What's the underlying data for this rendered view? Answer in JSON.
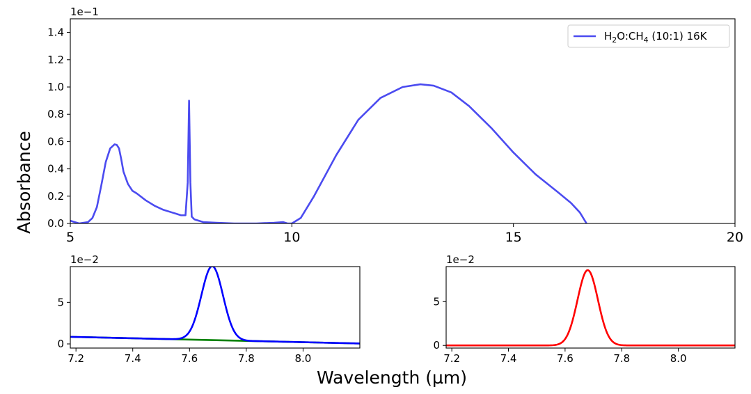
{
  "figure": {
    "ylabel": "Absorbance",
    "xlabel": "Wavelength (µm)"
  },
  "chart_data": [
    {
      "id": "main",
      "type": "line",
      "multiplier_label": "1e−1",
      "xlim": [
        5,
        20
      ],
      "ylim": [
        0,
        1.5
      ],
      "xticks": [
        5,
        10,
        15,
        20
      ],
      "xtick_labels": [
        "5",
        "10",
        "15",
        "20"
      ],
      "yticks": [
        0,
        0.2,
        0.4,
        0.6,
        0.8,
        1.0,
        1.2,
        1.4
      ],
      "ytick_labels": [
        "0.0",
        "0.2",
        "0.4",
        "0.6",
        "0.8",
        "1.0",
        "1.2",
        "1.4"
      ],
      "legend": {
        "placement": "top-right",
        "entries": [
          {
            "label_main": "H",
            "sub1": "2",
            "label_mid": "O:CH",
            "sub2": "4",
            "label_end": " (10:1) 16K",
            "color": "#4b4bf0"
          }
        ]
      },
      "series": [
        {
          "name": "H2O:CH4 (10:1) 16K",
          "color": "#4b4bf0",
          "x": [
            5.0,
            5.2,
            5.4,
            5.5,
            5.6,
            5.7,
            5.8,
            5.9,
            6.0,
            6.05,
            6.1,
            6.15,
            6.2,
            6.3,
            6.4,
            6.5,
            6.7,
            6.9,
            7.1,
            7.3,
            7.5,
            7.6,
            7.65,
            7.68,
            7.71,
            7.74,
            7.8,
            7.9,
            8.0,
            8.3,
            8.7,
            9.2,
            9.6,
            9.8,
            9.9,
            10.0,
            10.2,
            10.5,
            11.0,
            11.5,
            12.0,
            12.5,
            12.9,
            13.2,
            13.6,
            14.0,
            14.5,
            15.0,
            15.5,
            16.0,
            16.3,
            16.5,
            16.65
          ],
          "y": [
            0.02,
            0.0,
            0.01,
            0.04,
            0.12,
            0.28,
            0.45,
            0.55,
            0.58,
            0.575,
            0.55,
            0.47,
            0.38,
            0.29,
            0.24,
            0.22,
            0.17,
            0.13,
            0.1,
            0.08,
            0.06,
            0.06,
            0.3,
            0.9,
            0.3,
            0.05,
            0.03,
            0.02,
            0.01,
            0.005,
            0.0,
            0.0,
            0.005,
            0.01,
            0.0,
            0.0,
            0.04,
            0.2,
            0.5,
            0.76,
            0.92,
            1.0,
            1.02,
            1.01,
            0.96,
            0.86,
            0.7,
            0.52,
            0.36,
            0.23,
            0.15,
            0.08,
            0.0
          ]
        }
      ]
    },
    {
      "id": "bottom-left",
      "type": "line",
      "multiplier_label": "1e−2",
      "xlim": [
        7.18,
        8.2
      ],
      "ylim": [
        -0.5,
        9.3
      ],
      "xticks": [
        7.2,
        7.4,
        7.6,
        7.8,
        8.0
      ],
      "xtick_labels": [
        "7.2",
        "7.4",
        "7.6",
        "7.8",
        "8.0"
      ],
      "yticks": [
        0,
        5
      ],
      "ytick_labels": [
        "0",
        "5"
      ],
      "series": [
        {
          "name": "baseline",
          "color": "#008000",
          "x": [
            7.18,
            8.2
          ],
          "y": [
            0.85,
            0.05
          ]
        },
        {
          "name": "band",
          "color": "#0000ff",
          "peak": {
            "center": 7.68,
            "height": 8.9,
            "width": 0.038
          },
          "x": [],
          "y": []
        }
      ]
    },
    {
      "id": "bottom-right",
      "type": "line",
      "multiplier_label": "1e−2",
      "xlim": [
        7.18,
        8.2
      ],
      "ylim": [
        -0.3,
        9.0
      ],
      "xticks": [
        7.2,
        7.4,
        7.6,
        7.8,
        8.0
      ],
      "xtick_labels": [
        "7.2",
        "7.4",
        "7.6",
        "7.8",
        "8.0"
      ],
      "yticks": [
        0,
        5
      ],
      "ytick_labels": [
        "0",
        "5"
      ],
      "series": [
        {
          "name": "baseline-subtracted band",
          "color": "#ff0000",
          "peak": {
            "center": 7.68,
            "height": 8.6,
            "width": 0.036
          },
          "x": [],
          "y": []
        }
      ]
    }
  ]
}
